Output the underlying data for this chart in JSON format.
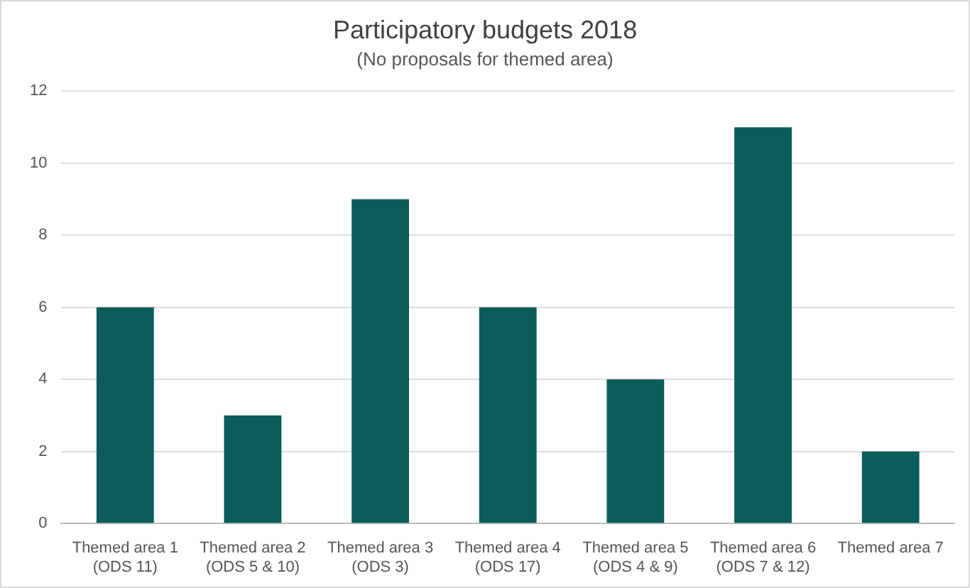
{
  "chart_data": {
    "type": "bar",
    "title": "Participatory budgets 2018",
    "subtitle": "(No proposals for themed area)",
    "categories": [
      "Themed area 1\n(ODS 11)",
      "Themed area 2\n(ODS 5 & 10)",
      "Themed area 3\n(ODS 3)",
      "Themed area 4\n(ODS 17)",
      "Themed area 5\n(ODS 4 & 9)",
      "Themed area 6\n(ODS 7 & 12)",
      "Themed area 7"
    ],
    "values": [
      6,
      3,
      9,
      6,
      4,
      11,
      2
    ],
    "color": "#0b5c5a",
    "ylim": [
      0,
      12
    ],
    "yticks": [
      0,
      2,
      4,
      6,
      8,
      10,
      12
    ],
    "grid": "y",
    "legend": false
  }
}
